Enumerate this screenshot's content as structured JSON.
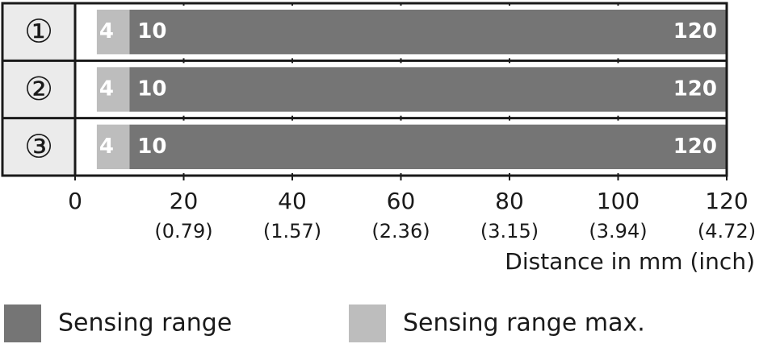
{
  "chart_data": {
    "type": "range_bar",
    "categories": [
      "①",
      "②",
      "③"
    ],
    "series": [
      {
        "name": "Sensing range",
        "color": "#757575",
        "start": [
          10,
          10,
          10
        ],
        "end": [
          120,
          120,
          120
        ]
      },
      {
        "name": "Sensing range max.",
        "color": "#bdbdbd",
        "start": [
          4,
          4,
          4
        ],
        "end": [
          10,
          10,
          10
        ]
      }
    ],
    "xlim": [
      0,
      120
    ],
    "xticks": [
      0,
      20,
      40,
      60,
      80,
      100,
      120
    ],
    "xtick_inch_labels": [
      null,
      "(0.79)",
      "(1.57)",
      "(2.36)",
      "(3.15)",
      "(3.94)",
      "(4.72)"
    ],
    "xlabel": "Distance in mm (inch)",
    "grid": true
  }
}
